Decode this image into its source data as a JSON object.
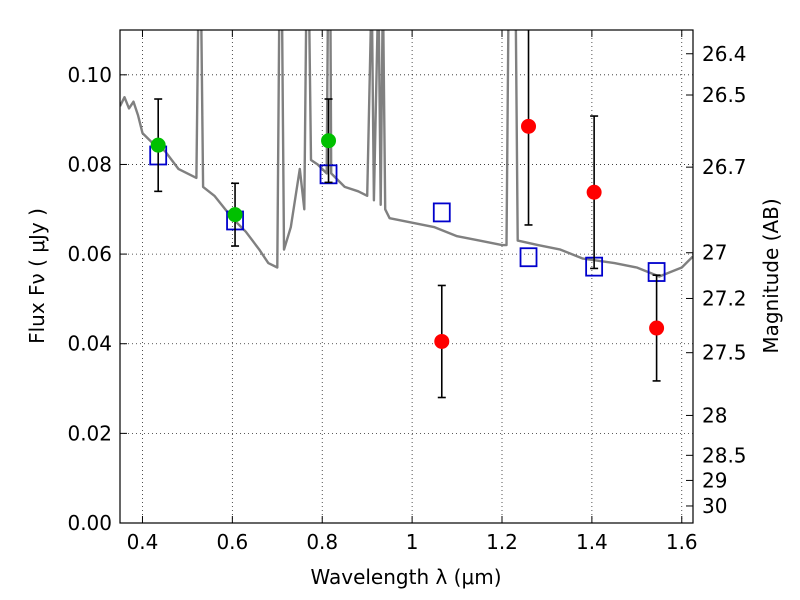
{
  "chart_data": {
    "type": "scatter",
    "xlabel": "Wavelength  λ (μm)",
    "ylabel": "Flux  Fν  ( μJy )",
    "ylabel_right": "Magnitude (AB)",
    "xlim": [
      0.35,
      1.625
    ],
    "ylim": [
      0.0,
      0.11
    ],
    "x_ticks": [
      0.4,
      0.6,
      0.8,
      1.0,
      1.2,
      1.4,
      1.6
    ],
    "x_tick_labels": [
      "0.4",
      "0.6",
      "0.8",
      "1",
      "1.2",
      "1.4",
      "1.6"
    ],
    "y_ticks": [
      0.0,
      0.02,
      0.04,
      0.06,
      0.08,
      0.1
    ],
    "y_tick_labels": [
      "0.00",
      "0.02",
      "0.04",
      "0.06",
      "0.08",
      "0.10"
    ],
    "right_ticks": [
      {
        "label": "26.4",
        "flux": 0.1047
      },
      {
        "label": "26.5",
        "flux": 0.0955
      },
      {
        "label": "26.7",
        "flux": 0.0794
      },
      {
        "label": "27",
        "flux": 0.0603
      },
      {
        "label": "27.2",
        "flux": 0.0501
      },
      {
        "label": "27.5",
        "flux": 0.038
      },
      {
        "label": "28",
        "flux": 0.024
      },
      {
        "label": "28.5",
        "flux": 0.0151
      },
      {
        "label": "29",
        "flux": 0.0095
      },
      {
        "label": "30",
        "flux": 0.0038
      }
    ],
    "grid": true,
    "series": [
      {
        "marker": "circle",
        "color": "#00c000",
        "points": [
          {
            "x": 0.435,
            "y": 0.0843,
            "err": 0.0103
          },
          {
            "x": 0.606,
            "y": 0.0688,
            "err": 0.007
          },
          {
            "x": 0.814,
            "y": 0.0853,
            "err": 0.0093
          }
        ]
      },
      {
        "marker": "circle",
        "color": "#ff0000",
        "points": [
          {
            "x": 1.066,
            "y": 0.0405,
            "err": 0.0125
          },
          {
            "x": 1.259,
            "y": 0.0885,
            "err": 0.022
          },
          {
            "x": 1.405,
            "y": 0.0738,
            "err": 0.017
          },
          {
            "x": 1.544,
            "y": 0.0435,
            "err": 0.0118
          }
        ]
      },
      {
        "marker": "open-square",
        "color": "#0000cc",
        "points": [
          {
            "x": 0.435,
            "y": 0.082
          },
          {
            "x": 0.606,
            "y": 0.0675
          },
          {
            "x": 0.814,
            "y": 0.0778
          },
          {
            "x": 1.066,
            "y": 0.0693
          },
          {
            "x": 1.259,
            "y": 0.0593
          },
          {
            "x": 1.405,
            "y": 0.0572
          },
          {
            "x": 1.544,
            "y": 0.056
          }
        ]
      },
      {
        "marker": "line",
        "color": "#808080",
        "points": [
          {
            "x": 0.35,
            "y": 0.093
          },
          {
            "x": 0.36,
            "y": 0.095
          },
          {
            "x": 0.37,
            "y": 0.0925
          },
          {
            "x": 0.38,
            "y": 0.094
          },
          {
            "x": 0.39,
            "y": 0.091
          },
          {
            "x": 0.4,
            "y": 0.087
          },
          {
            "x": 0.42,
            "y": 0.085
          },
          {
            "x": 0.45,
            "y": 0.083
          },
          {
            "x": 0.48,
            "y": 0.079
          },
          {
            "x": 0.5,
            "y": 0.078
          },
          {
            "x": 0.52,
            "y": 0.077
          },
          {
            "x": 0.525,
            "y": 0.12
          },
          {
            "x": 0.53,
            "y": 0.12
          },
          {
            "x": 0.535,
            "y": 0.075
          },
          {
            "x": 0.56,
            "y": 0.073
          },
          {
            "x": 0.6,
            "y": 0.068
          },
          {
            "x": 0.63,
            "y": 0.065
          },
          {
            "x": 0.66,
            "y": 0.061
          },
          {
            "x": 0.68,
            "y": 0.058
          },
          {
            "x": 0.7,
            "y": 0.057
          },
          {
            "x": 0.705,
            "y": 0.12
          },
          {
            "x": 0.71,
            "y": 0.12
          },
          {
            "x": 0.715,
            "y": 0.061
          },
          {
            "x": 0.73,
            "y": 0.066
          },
          {
            "x": 0.75,
            "y": 0.079
          },
          {
            "x": 0.76,
            "y": 0.07
          },
          {
            "x": 0.765,
            "y": 0.12
          },
          {
            "x": 0.77,
            "y": 0.12
          },
          {
            "x": 0.775,
            "y": 0.081
          },
          {
            "x": 0.79,
            "y": 0.08
          },
          {
            "x": 0.81,
            "y": 0.078
          },
          {
            "x": 0.813,
            "y": 0.12
          },
          {
            "x": 0.818,
            "y": 0.12
          },
          {
            "x": 0.82,
            "y": 0.078
          },
          {
            "x": 0.85,
            "y": 0.075
          },
          {
            "x": 0.88,
            "y": 0.074
          },
          {
            "x": 0.9,
            "y": 0.073
          },
          {
            "x": 0.91,
            "y": 0.12
          },
          {
            "x": 0.915,
            "y": 0.072
          },
          {
            "x": 0.925,
            "y": 0.12
          },
          {
            "x": 0.93,
            "y": 0.071
          },
          {
            "x": 0.935,
            "y": 0.12
          },
          {
            "x": 0.94,
            "y": 0.07
          },
          {
            "x": 0.95,
            "y": 0.068
          },
          {
            "x": 1.0,
            "y": 0.067
          },
          {
            "x": 1.05,
            "y": 0.066
          },
          {
            "x": 1.1,
            "y": 0.064
          },
          {
            "x": 1.15,
            "y": 0.063
          },
          {
            "x": 1.2,
            "y": 0.062
          },
          {
            "x": 1.21,
            "y": 0.062
          },
          {
            "x": 1.215,
            "y": 0.12
          },
          {
            "x": 1.23,
            "y": 0.12
          },
          {
            "x": 1.235,
            "y": 0.063
          },
          {
            "x": 1.28,
            "y": 0.062
          },
          {
            "x": 1.33,
            "y": 0.061
          },
          {
            "x": 1.38,
            "y": 0.059
          },
          {
            "x": 1.45,
            "y": 0.058
          },
          {
            "x": 1.5,
            "y": 0.057
          },
          {
            "x": 1.55,
            "y": 0.055
          },
          {
            "x": 1.6,
            "y": 0.057
          },
          {
            "x": 1.625,
            "y": 0.0595
          }
        ]
      }
    ]
  }
}
